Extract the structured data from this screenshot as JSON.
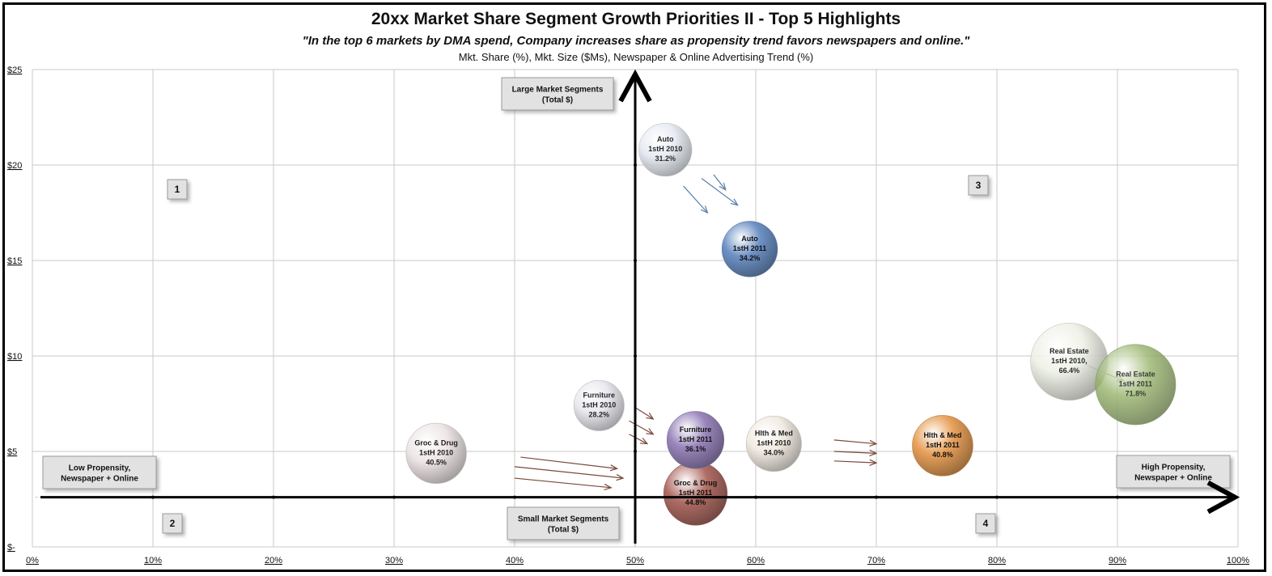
{
  "chart_data": {
    "type": "scatter",
    "subtype": "bubble",
    "title": "20xx Market Share Segment Growth Priorities II - Top 5 Highlights",
    "subtitle": "\"In the top 6 markets by DMA spend, Company increases share as propensity trend favors newspapers and online.\"",
    "axes_caption": "Mkt. Share (%), Mkt. Size ($Ms), Newspaper & Online Advertising Trend (%)",
    "xlim": [
      0,
      100
    ],
    "ylim": [
      0,
      25
    ],
    "x_ticks": [
      "0%",
      "10%",
      "20%",
      "30%",
      "40%",
      "50%",
      "60%",
      "70%",
      "80%",
      "90%",
      "100%"
    ],
    "x_tick_values": [
      0,
      10,
      20,
      30,
      40,
      50,
      60,
      70,
      80,
      90,
      100
    ],
    "y_ticks": [
      "$-",
      "$5",
      "$10",
      "$15",
      "$20",
      "$25"
    ],
    "y_tick_values": [
      0,
      5,
      10,
      15,
      20,
      25
    ],
    "grid": true,
    "bubbles": [
      {
        "name": "Auto 2010",
        "label": [
          "Auto",
          "1stH 2010",
          "31.2%"
        ],
        "x": 52.5,
        "y": 20.8,
        "share": 31.2,
        "color": "#e6ebf2",
        "alpha": 0.9
      },
      {
        "name": "Auto 2011",
        "label": [
          "Auto",
          "1stH 2011",
          "34.2%"
        ],
        "x": 59.5,
        "y": 15.6,
        "share": 34.2,
        "color": "#6e92c6",
        "alpha": 1
      },
      {
        "name": "Real Estate 2010",
        "label": [
          "Real Estate",
          "1stH 2010,",
          "66.4%"
        ],
        "x": 86,
        "y": 9.7,
        "share": 66.4,
        "color": "#eef1e6",
        "alpha": 0.9
      },
      {
        "name": "Real Estate 2011",
        "label": [
          "Real Estate",
          "1stH 2011",
          "71.8%"
        ],
        "x": 91.5,
        "y": 8.5,
        "share": 71.8,
        "color": "#9ab66e",
        "alpha": 0.82
      },
      {
        "name": "Furniture 2010",
        "label": [
          "Furniture",
          "1stH 2010",
          "28.2%"
        ],
        "x": 47,
        "y": 7.4,
        "share": 28.2,
        "color": "#e8e8ee",
        "alpha": 0.92
      },
      {
        "name": "Groc & Drug 2010",
        "label": [
          "Groc & Drug",
          "1stH 2010",
          "40.5%"
        ],
        "x": 33.5,
        "y": 4.9,
        "share": 40.5,
        "color": "#efe6e6",
        "alpha": 0.95
      },
      {
        "name": "Groc & Drug 2011",
        "label": [
          "Groc & Drug",
          "1stH 2011",
          "44.8%"
        ],
        "x": 55,
        "y": 2.8,
        "share": 44.8,
        "color": "#b06d65",
        "alpha": 1
      },
      {
        "name": "Furniture 2011",
        "label": [
          "Furniture",
          "1stH 2011",
          "36.1%"
        ],
        "x": 55,
        "y": 5.6,
        "share": 36.1,
        "color": "#9a86bd",
        "alpha": 1
      },
      {
        "name": "Hlth & Med 2010",
        "label": [
          "Hlth & Med",
          "1stH 2010",
          "34.0%"
        ],
        "x": 61.5,
        "y": 5.4,
        "share": 34.0,
        "color": "#f2ebe2",
        "alpha": 0.95
      },
      {
        "name": "Hlth & Med 2011",
        "label": [
          "Hlth & Med",
          "1stH 2011",
          "40.8%"
        ],
        "x": 75.5,
        "y": 5.3,
        "share": 40.8,
        "color": "#e8a15b",
        "alpha": 1
      }
    ],
    "arrows": [
      {
        "from": [
          54,
          18.9
        ],
        "to": [
          56,
          17.5
        ]
      },
      {
        "from": [
          55.5,
          19.3
        ],
        "to": [
          58.5,
          17.9
        ]
      },
      {
        "from": [
          56.5,
          19.5
        ],
        "to": [
          57.5,
          18.7
        ]
      },
      {
        "from": [
          50,
          7.3
        ],
        "to": [
          51.5,
          6.7
        ]
      },
      {
        "from": [
          49.5,
          6.6
        ],
        "to": [
          51.5,
          5.9
        ]
      },
      {
        "from": [
          49.5,
          5.9
        ],
        "to": [
          51,
          5.4
        ]
      },
      {
        "from": [
          40.5,
          4.7
        ],
        "to": [
          48.5,
          4.1
        ]
      },
      {
        "from": [
          40,
          4.2
        ],
        "to": [
          49,
          3.6
        ]
      },
      {
        "from": [
          40,
          3.6
        ],
        "to": [
          48,
          3.1
        ]
      },
      {
        "from": [
          66.5,
          5.6
        ],
        "to": [
          70,
          5.4
        ]
      },
      {
        "from": [
          66.5,
          5.0
        ],
        "to": [
          70,
          4.9
        ]
      },
      {
        "from": [
          66.5,
          4.5
        ],
        "to": [
          70,
          4.4
        ]
      },
      {
        "from": [
          87.5,
          9.5
        ],
        "to": [
          90.5,
          8.7
        ]
      }
    ],
    "annotations": {
      "large_segments": [
        "Large Market Segments",
        "(Total $)"
      ],
      "small_segments": [
        "Small Market Segments",
        "(Total $)"
      ],
      "low_propensity": [
        "Low Propensity,",
        "Newspaper + Online"
      ],
      "high_propensity": [
        "High Propensity,",
        "Newspaper + Online"
      ],
      "quadrants": [
        "1",
        "2",
        "3",
        "4"
      ]
    }
  },
  "colors": {
    "grid": "#c8c8c8",
    "axis": "#000000",
    "box_fill": "#e2e2e2",
    "box_border": "#9a9a9a",
    "arrow_blue": "#5a7fa8",
    "arrow_brown": "#7a4a3a",
    "arrow_green": "#3e6b2a"
  }
}
